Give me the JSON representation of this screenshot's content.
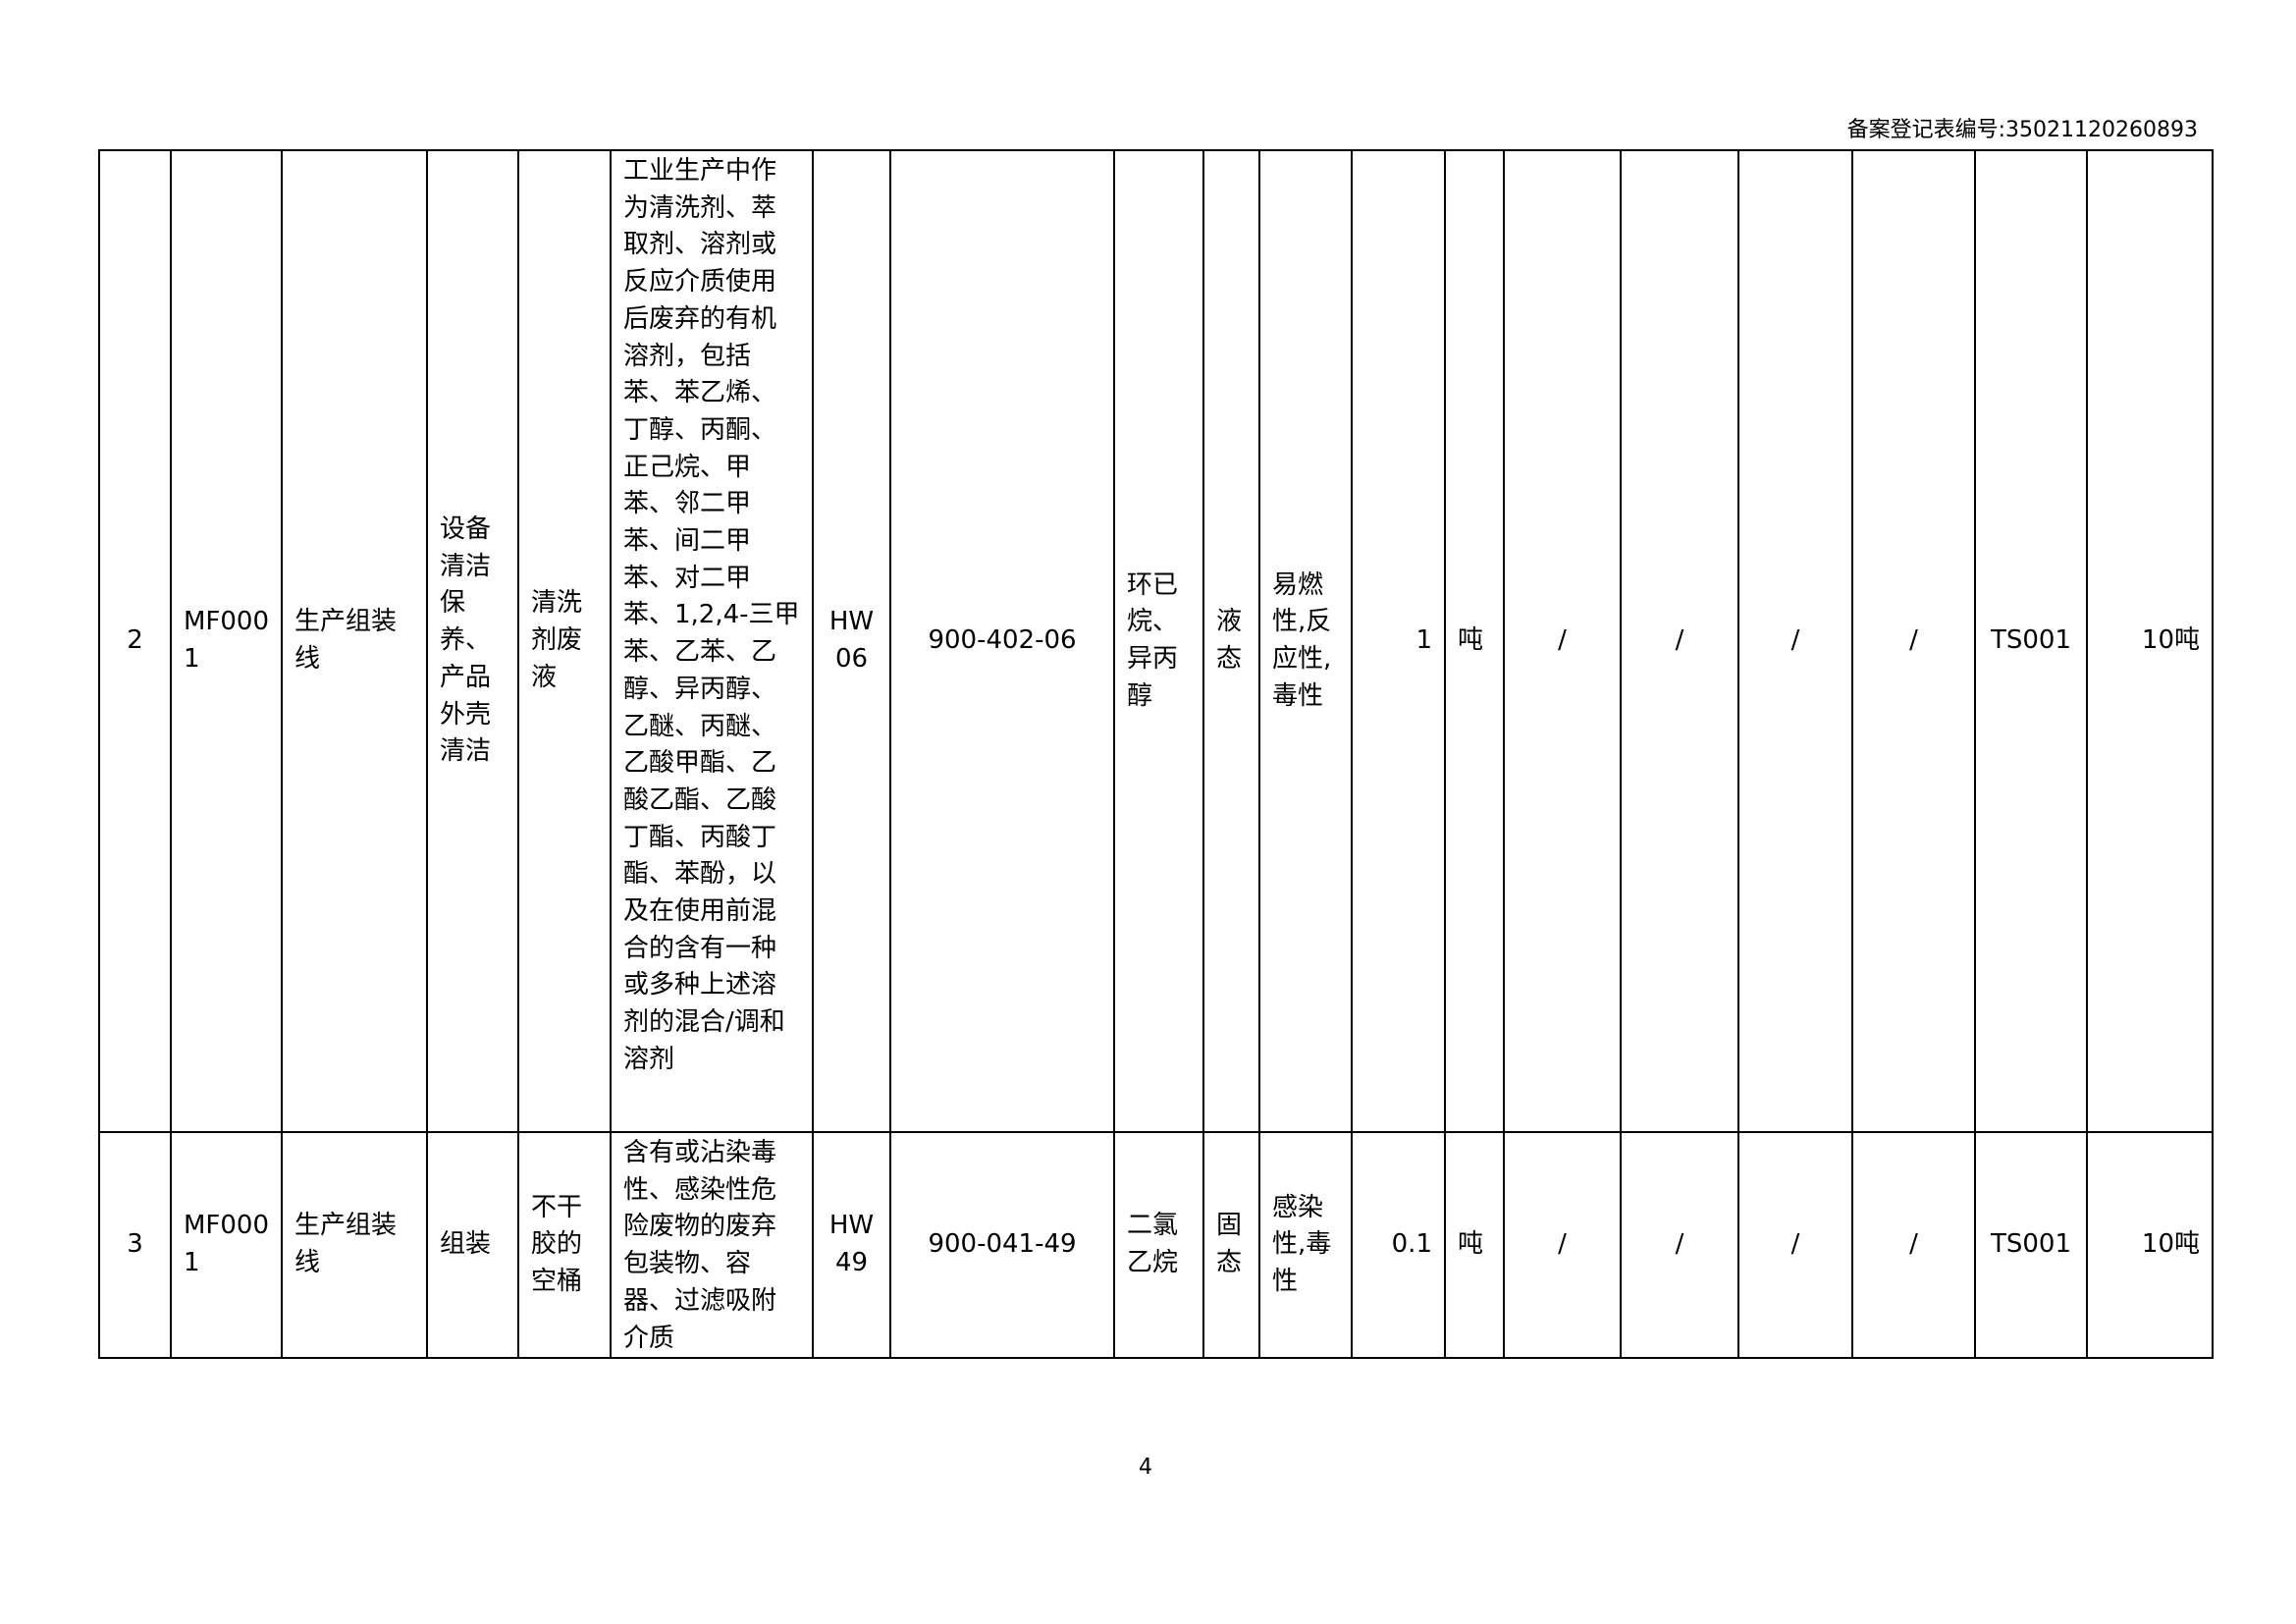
{
  "header": {
    "label": "备案登记表编号:",
    "number": "35021120260893"
  },
  "rows": [
    {
      "no": "2",
      "code": "MF0001",
      "line": "生产组装线",
      "process": "设备清洁保养、产品外壳清洁",
      "waste_name": "清洗剂废液",
      "description": "工业生产中作为清洗剂、萃取剂、溶剂或反应介质使用后废弃的有机溶剂，包括苯、苯乙烯、丁醇、丙酮、正己烷、甲苯、邻二甲苯、间二甲苯、对二甲苯、1,2,4-三甲苯、乙苯、乙醇、异丙醇、乙醚、丙醚、乙酸甲酯、乙酸乙酯、乙酸丁酯、丙酸丁酯、苯酚，以及在使用前混合的含有一种或多种上述溶剂的混合/调和溶剂",
      "category": "HW06",
      "waste_code": "900-402-06",
      "hazardous_component": "环已烷、异丙醇",
      "form": "液态",
      "hazard": "易燃性,反应性,毒性",
      "quantity": "1",
      "unit": "吨",
      "col_a": "/",
      "col_b": "/",
      "col_c": "/",
      "col_d": "/",
      "facility": "TS001",
      "capacity": "10吨"
    },
    {
      "no": "3",
      "code": "MF0001",
      "line": "生产组装线",
      "process": "组装",
      "waste_name": "不干胶的空桶",
      "description": "含有或沾染毒性、感染性危险废物的废弃包装物、容器、过滤吸附介质",
      "category": "HW49",
      "waste_code": "900-041-49",
      "hazardous_component": "二氯乙烷",
      "form": "固态",
      "hazard": "感染性,毒性",
      "quantity": "0.1",
      "unit": "吨",
      "col_a": "/",
      "col_b": "/",
      "col_c": "/",
      "col_d": "/",
      "facility": "TS001",
      "capacity": "10吨"
    }
  ],
  "page_number": "4"
}
